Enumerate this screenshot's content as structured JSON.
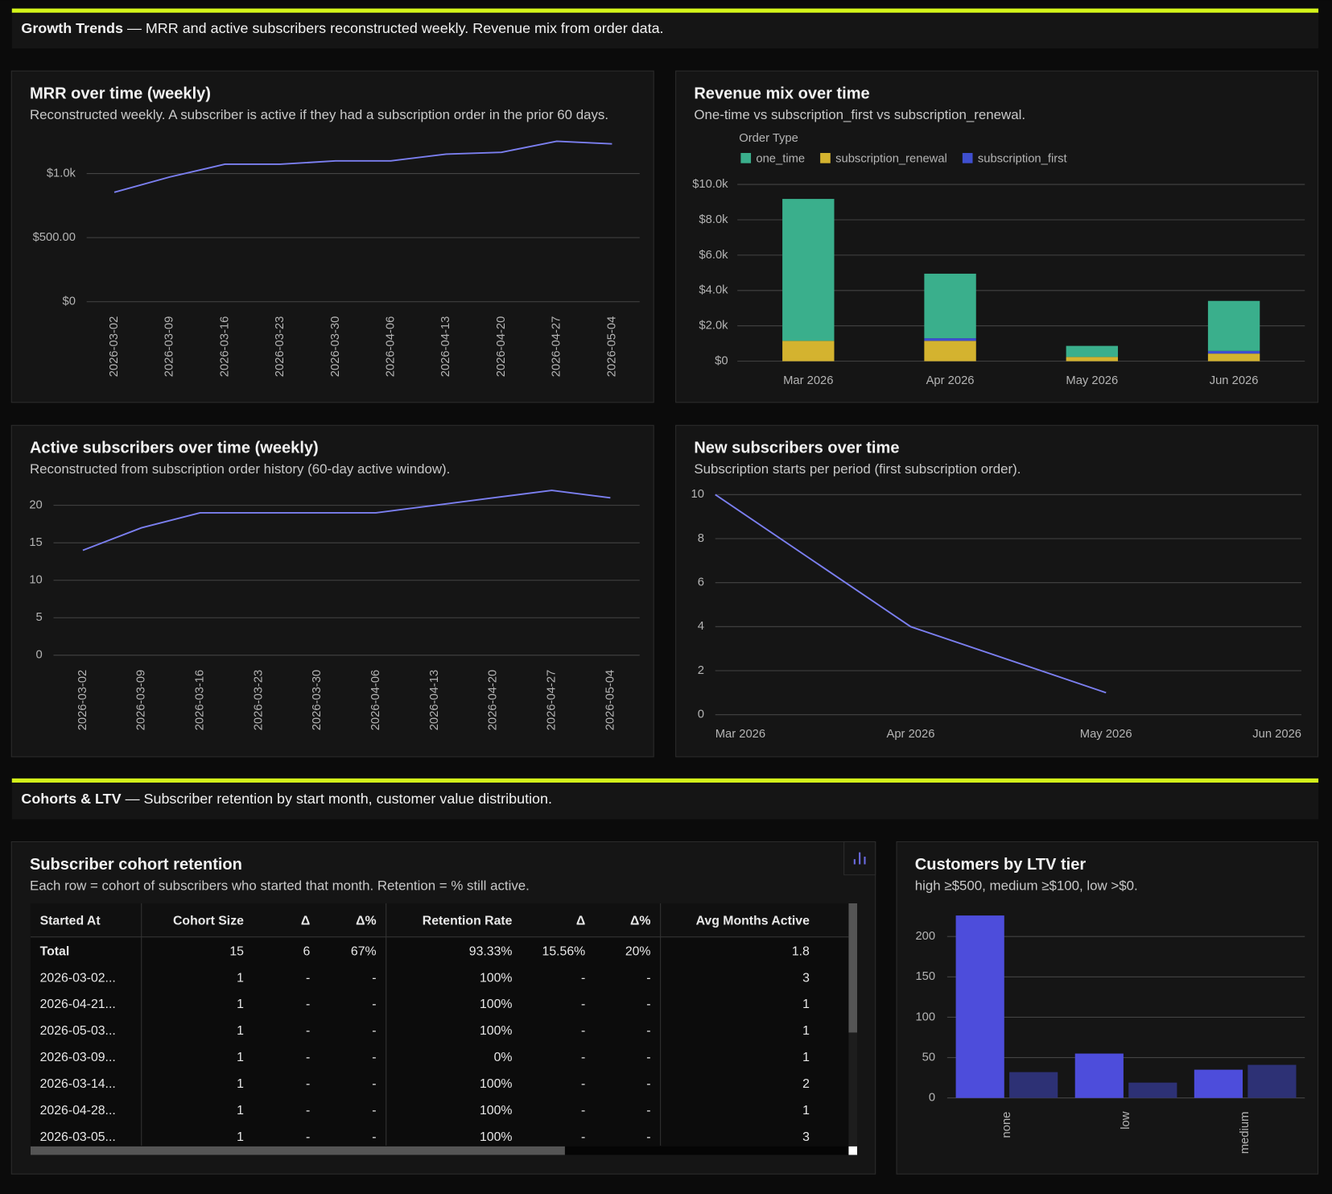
{
  "sections": [
    {
      "title": "Growth Trends",
      "description": "— MRR and active subscribers reconstructed weekly. Revenue mix from order data."
    },
    {
      "title": "Cohorts & LTV",
      "description": "— Subscriber retention by start month, customer value distribution."
    }
  ],
  "chart_data": [
    {
      "type": "line",
      "title": "MRR over time (weekly)",
      "subtitle": "Reconstructed weekly. A subscriber is active if they had a subscription order in the prior 60 days.",
      "categories": [
        "2026-03-02",
        "2026-03-09",
        "2026-03-16",
        "2026-03-23",
        "2026-03-30",
        "2026-04-06",
        "2026-04-13",
        "2026-04-20",
        "2026-04-27",
        "2026-05-04"
      ],
      "series": [
        {
          "color": "#7b7ff0",
          "values": [
            854,
            973,
            1073,
            1073,
            1099,
            1099,
            1152,
            1166,
            1252,
            1232
          ]
        }
      ],
      "ylim": [
        0,
        1300
      ],
      "yticks": [
        {
          "value": 0,
          "label": "$0"
        },
        {
          "value": 500,
          "label": "$500.00"
        },
        {
          "value": 1000,
          "label": "$1.0k"
        }
      ],
      "grid": true
    },
    {
      "type": "stacked_bar",
      "title": "Revenue mix over time",
      "subtitle": "One-time vs subscription_first vs subscription_renewal.",
      "legend_title": "Order Type",
      "categories": [
        "Mar 2026",
        "Apr 2026",
        "May 2026",
        "Jun 2026"
      ],
      "series": [
        {
          "name": "one_time",
          "color": "#3aaf8c",
          "values": [
            8030,
            3650,
            625,
            2830
          ]
        },
        {
          "name": "subscription_renewal",
          "color": "#d4b32f",
          "values": [
            1150,
            1150,
            240,
            430
          ]
        },
        {
          "name": "subscription_first",
          "color": "#3f4fcf",
          "values": [
            0,
            150,
            0,
            150
          ]
        }
      ],
      "ylim": [
        0,
        10000
      ],
      "yticks": [
        {
          "value": 0,
          "label": "$0"
        },
        {
          "value": 2000,
          "label": "$2.0k"
        },
        {
          "value": 4000,
          "label": "$4.0k"
        },
        {
          "value": 6000,
          "label": "$6.0k"
        },
        {
          "value": 8000,
          "label": "$8.0k"
        },
        {
          "value": 10000,
          "label": "$10.0k"
        }
      ],
      "grid": true
    },
    {
      "type": "line",
      "title": "Active subscribers over time (weekly)",
      "subtitle": "Reconstructed from subscription order history (60-day active window).",
      "categories": [
        "2026-03-02",
        "2026-03-09",
        "2026-03-16",
        "2026-03-23",
        "2026-03-30",
        "2026-04-06",
        "2026-04-13",
        "2026-04-20",
        "2026-04-27",
        "2026-05-04"
      ],
      "series": [
        {
          "color": "#7b7ff0",
          "values": [
            14,
            17,
            19,
            19,
            19,
            19,
            20,
            21,
            22,
            21
          ]
        }
      ],
      "ylim": [
        0,
        22
      ],
      "yticks": [
        0,
        5,
        10,
        15,
        20
      ],
      "grid": true
    },
    {
      "type": "line",
      "title": "New subscribers over time",
      "subtitle": "Subscription starts per period (first subscription order).",
      "categories": [
        "Mar 2026",
        "Apr 2026",
        "May 2026",
        "Jun 2026"
      ],
      "series": [
        {
          "color": "#7b7ff0",
          "values": [
            10,
            4,
            1,
            null
          ]
        }
      ],
      "ylim": [
        0,
        10
      ],
      "yticks": [
        0,
        2,
        4,
        6,
        8,
        10
      ],
      "grid": true
    },
    {
      "type": "bar",
      "title": "Customers by LTV tier",
      "subtitle": "high ≥$500, medium ≥$100, low >$0.",
      "categories": [
        "none",
        "low",
        "medium"
      ],
      "series": [
        {
          "color": "#4d4ddb",
          "values": [
            226,
            55,
            35
          ]
        },
        {
          "color": "#2d3175",
          "values": [
            32,
            19,
            41
          ]
        }
      ],
      "ylim": [
        0,
        230
      ],
      "yticks": [
        0,
        50,
        100,
        150,
        200
      ],
      "grid": true
    }
  ],
  "table": {
    "title": "Subscriber cohort retention",
    "subtitle": "Each row = cohort of subscribers who started that month. Retention = % still active.",
    "columns": [
      "Started At",
      "Cohort Size",
      "Δ",
      "Δ%",
      "Retention Rate",
      "Δ",
      "Δ%",
      "Avg Months Active"
    ],
    "rows": [
      [
        "Total",
        "15",
        "6",
        "67%",
        "93.33%",
        "15.56%",
        "20%",
        "1.8"
      ],
      [
        "2026-03-02...",
        "1",
        "-",
        "-",
        "100%",
        "-",
        "-",
        "3"
      ],
      [
        "2026-04-21...",
        "1",
        "-",
        "-",
        "100%",
        "-",
        "-",
        "1"
      ],
      [
        "2026-05-03...",
        "1",
        "-",
        "-",
        "100%",
        "-",
        "-",
        "1"
      ],
      [
        "2026-03-09...",
        "1",
        "-",
        "-",
        "0%",
        "-",
        "-",
        "1"
      ],
      [
        "2026-03-14...",
        "1",
        "-",
        "-",
        "100%",
        "-",
        "-",
        "2"
      ],
      [
        "2026-04-28...",
        "1",
        "-",
        "-",
        "100%",
        "-",
        "-",
        "1"
      ],
      [
        "2026-03-05...",
        "1",
        "-",
        "-",
        "100%",
        "-",
        "-",
        "3"
      ]
    ]
  }
}
